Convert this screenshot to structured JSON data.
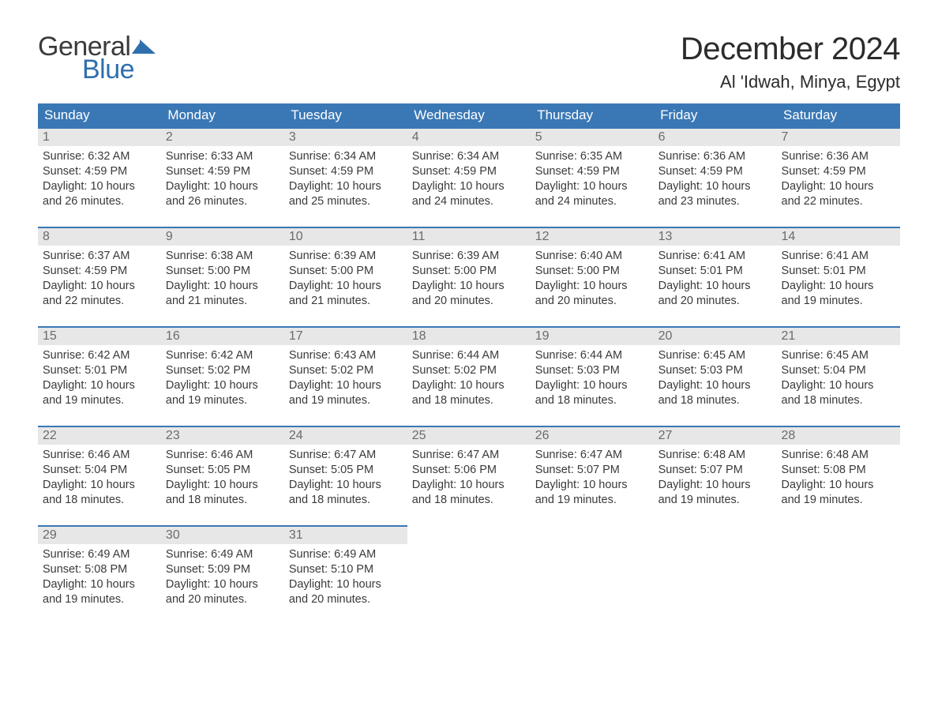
{
  "logo": {
    "word1": "General",
    "word2": "Blue"
  },
  "header": {
    "month_title": "December 2024",
    "location": "Al 'Idwah, Minya, Egypt"
  },
  "colors": {
    "header_bg": "#3a78b5",
    "header_text": "#ffffff",
    "daynum_bg": "#e7e7e7",
    "daynum_text": "#6b6b6b",
    "body_text": "#3a3a3a",
    "row_divider": "#3a78b5",
    "logo_gray": "#3a3a3a",
    "logo_blue": "#2f6fad",
    "background": "#ffffff"
  },
  "typography": {
    "title_fontsize": 40,
    "location_fontsize": 22,
    "weekday_fontsize": 17,
    "daynum_fontsize": 16,
    "body_fontsize": 14.5
  },
  "weekdays": [
    "Sunday",
    "Monday",
    "Tuesday",
    "Wednesday",
    "Thursday",
    "Friday",
    "Saturday"
  ],
  "weeks": [
    [
      {
        "n": "1",
        "sunrise": "Sunrise: 6:32 AM",
        "sunset": "Sunset: 4:59 PM",
        "d1": "Daylight: 10 hours",
        "d2": "and 26 minutes."
      },
      {
        "n": "2",
        "sunrise": "Sunrise: 6:33 AM",
        "sunset": "Sunset: 4:59 PM",
        "d1": "Daylight: 10 hours",
        "d2": "and 26 minutes."
      },
      {
        "n": "3",
        "sunrise": "Sunrise: 6:34 AM",
        "sunset": "Sunset: 4:59 PM",
        "d1": "Daylight: 10 hours",
        "d2": "and 25 minutes."
      },
      {
        "n": "4",
        "sunrise": "Sunrise: 6:34 AM",
        "sunset": "Sunset: 4:59 PM",
        "d1": "Daylight: 10 hours",
        "d2": "and 24 minutes."
      },
      {
        "n": "5",
        "sunrise": "Sunrise: 6:35 AM",
        "sunset": "Sunset: 4:59 PM",
        "d1": "Daylight: 10 hours",
        "d2": "and 24 minutes."
      },
      {
        "n": "6",
        "sunrise": "Sunrise: 6:36 AM",
        "sunset": "Sunset: 4:59 PM",
        "d1": "Daylight: 10 hours",
        "d2": "and 23 minutes."
      },
      {
        "n": "7",
        "sunrise": "Sunrise: 6:36 AM",
        "sunset": "Sunset: 4:59 PM",
        "d1": "Daylight: 10 hours",
        "d2": "and 22 minutes."
      }
    ],
    [
      {
        "n": "8",
        "sunrise": "Sunrise: 6:37 AM",
        "sunset": "Sunset: 4:59 PM",
        "d1": "Daylight: 10 hours",
        "d2": "and 22 minutes."
      },
      {
        "n": "9",
        "sunrise": "Sunrise: 6:38 AM",
        "sunset": "Sunset: 5:00 PM",
        "d1": "Daylight: 10 hours",
        "d2": "and 21 minutes."
      },
      {
        "n": "10",
        "sunrise": "Sunrise: 6:39 AM",
        "sunset": "Sunset: 5:00 PM",
        "d1": "Daylight: 10 hours",
        "d2": "and 21 minutes."
      },
      {
        "n": "11",
        "sunrise": "Sunrise: 6:39 AM",
        "sunset": "Sunset: 5:00 PM",
        "d1": "Daylight: 10 hours",
        "d2": "and 20 minutes."
      },
      {
        "n": "12",
        "sunrise": "Sunrise: 6:40 AM",
        "sunset": "Sunset: 5:00 PM",
        "d1": "Daylight: 10 hours",
        "d2": "and 20 minutes."
      },
      {
        "n": "13",
        "sunrise": "Sunrise: 6:41 AM",
        "sunset": "Sunset: 5:01 PM",
        "d1": "Daylight: 10 hours",
        "d2": "and 20 minutes."
      },
      {
        "n": "14",
        "sunrise": "Sunrise: 6:41 AM",
        "sunset": "Sunset: 5:01 PM",
        "d1": "Daylight: 10 hours",
        "d2": "and 19 minutes."
      }
    ],
    [
      {
        "n": "15",
        "sunrise": "Sunrise: 6:42 AM",
        "sunset": "Sunset: 5:01 PM",
        "d1": "Daylight: 10 hours",
        "d2": "and 19 minutes."
      },
      {
        "n": "16",
        "sunrise": "Sunrise: 6:42 AM",
        "sunset": "Sunset: 5:02 PM",
        "d1": "Daylight: 10 hours",
        "d2": "and 19 minutes."
      },
      {
        "n": "17",
        "sunrise": "Sunrise: 6:43 AM",
        "sunset": "Sunset: 5:02 PM",
        "d1": "Daylight: 10 hours",
        "d2": "and 19 minutes."
      },
      {
        "n": "18",
        "sunrise": "Sunrise: 6:44 AM",
        "sunset": "Sunset: 5:02 PM",
        "d1": "Daylight: 10 hours",
        "d2": "and 18 minutes."
      },
      {
        "n": "19",
        "sunrise": "Sunrise: 6:44 AM",
        "sunset": "Sunset: 5:03 PM",
        "d1": "Daylight: 10 hours",
        "d2": "and 18 minutes."
      },
      {
        "n": "20",
        "sunrise": "Sunrise: 6:45 AM",
        "sunset": "Sunset: 5:03 PM",
        "d1": "Daylight: 10 hours",
        "d2": "and 18 minutes."
      },
      {
        "n": "21",
        "sunrise": "Sunrise: 6:45 AM",
        "sunset": "Sunset: 5:04 PM",
        "d1": "Daylight: 10 hours",
        "d2": "and 18 minutes."
      }
    ],
    [
      {
        "n": "22",
        "sunrise": "Sunrise: 6:46 AM",
        "sunset": "Sunset: 5:04 PM",
        "d1": "Daylight: 10 hours",
        "d2": "and 18 minutes."
      },
      {
        "n": "23",
        "sunrise": "Sunrise: 6:46 AM",
        "sunset": "Sunset: 5:05 PM",
        "d1": "Daylight: 10 hours",
        "d2": "and 18 minutes."
      },
      {
        "n": "24",
        "sunrise": "Sunrise: 6:47 AM",
        "sunset": "Sunset: 5:05 PM",
        "d1": "Daylight: 10 hours",
        "d2": "and 18 minutes."
      },
      {
        "n": "25",
        "sunrise": "Sunrise: 6:47 AM",
        "sunset": "Sunset: 5:06 PM",
        "d1": "Daylight: 10 hours",
        "d2": "and 18 minutes."
      },
      {
        "n": "26",
        "sunrise": "Sunrise: 6:47 AM",
        "sunset": "Sunset: 5:07 PM",
        "d1": "Daylight: 10 hours",
        "d2": "and 19 minutes."
      },
      {
        "n": "27",
        "sunrise": "Sunrise: 6:48 AM",
        "sunset": "Sunset: 5:07 PM",
        "d1": "Daylight: 10 hours",
        "d2": "and 19 minutes."
      },
      {
        "n": "28",
        "sunrise": "Sunrise: 6:48 AM",
        "sunset": "Sunset: 5:08 PM",
        "d1": "Daylight: 10 hours",
        "d2": "and 19 minutes."
      }
    ],
    [
      {
        "n": "29",
        "sunrise": "Sunrise: 6:49 AM",
        "sunset": "Sunset: 5:08 PM",
        "d1": "Daylight: 10 hours",
        "d2": "and 19 minutes."
      },
      {
        "n": "30",
        "sunrise": "Sunrise: 6:49 AM",
        "sunset": "Sunset: 5:09 PM",
        "d1": "Daylight: 10 hours",
        "d2": "and 20 minutes."
      },
      {
        "n": "31",
        "sunrise": "Sunrise: 6:49 AM",
        "sunset": "Sunset: 5:10 PM",
        "d1": "Daylight: 10 hours",
        "d2": "and 20 minutes."
      },
      null,
      null,
      null,
      null
    ]
  ]
}
